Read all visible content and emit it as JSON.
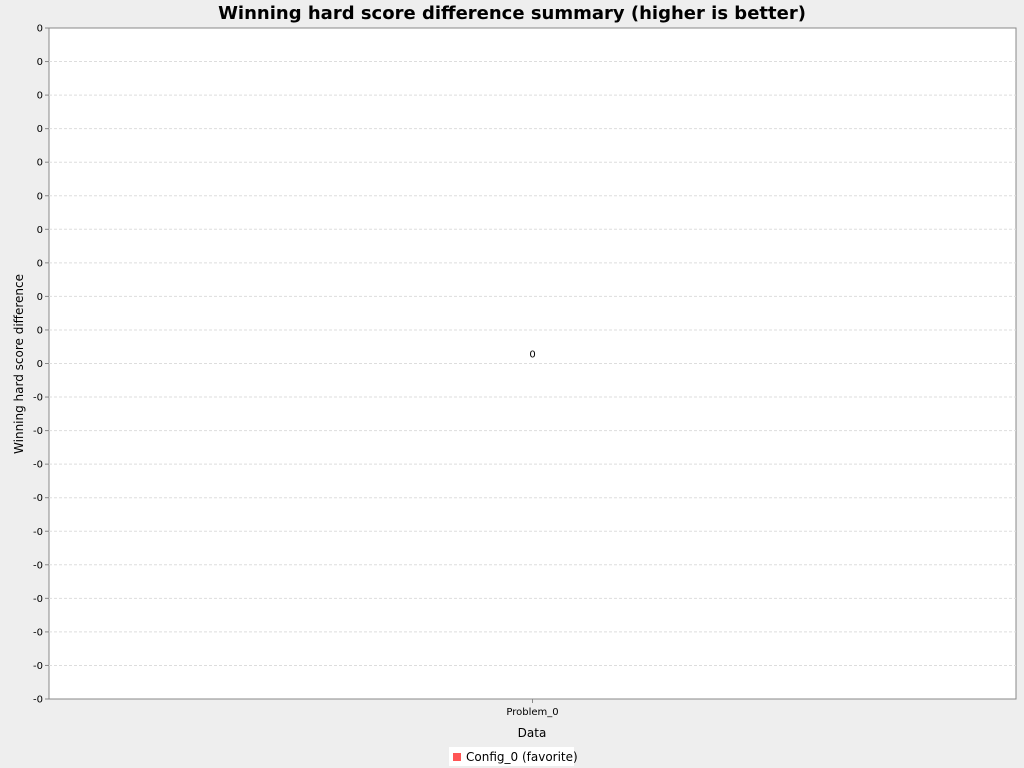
{
  "chart_data": {
    "type": "bar",
    "title": "Winning hard score difference summary (higher is better)",
    "xlabel": "Data",
    "ylabel": "Winning hard score difference",
    "categories": [
      "Problem_0"
    ],
    "series": [
      {
        "name": "Config_0 (favorite)",
        "values": [
          0
        ],
        "color": "#ff5555"
      }
    ],
    "data_labels": [
      "0"
    ],
    "y_tick_labels": [
      "0",
      "0",
      "0",
      "0",
      "0",
      "0",
      "0",
      "0",
      "0",
      "0",
      "0",
      "-0",
      "-0",
      "-0",
      "-0",
      "-0",
      "-0",
      "-0",
      "-0",
      "-0",
      "-0"
    ],
    "grid": true,
    "legend_position": "bottom-center"
  },
  "colors": {
    "background": "#eeeeee",
    "plot_background": "#ffffff",
    "gridline": "#dddddd",
    "axis": "#888888"
  }
}
